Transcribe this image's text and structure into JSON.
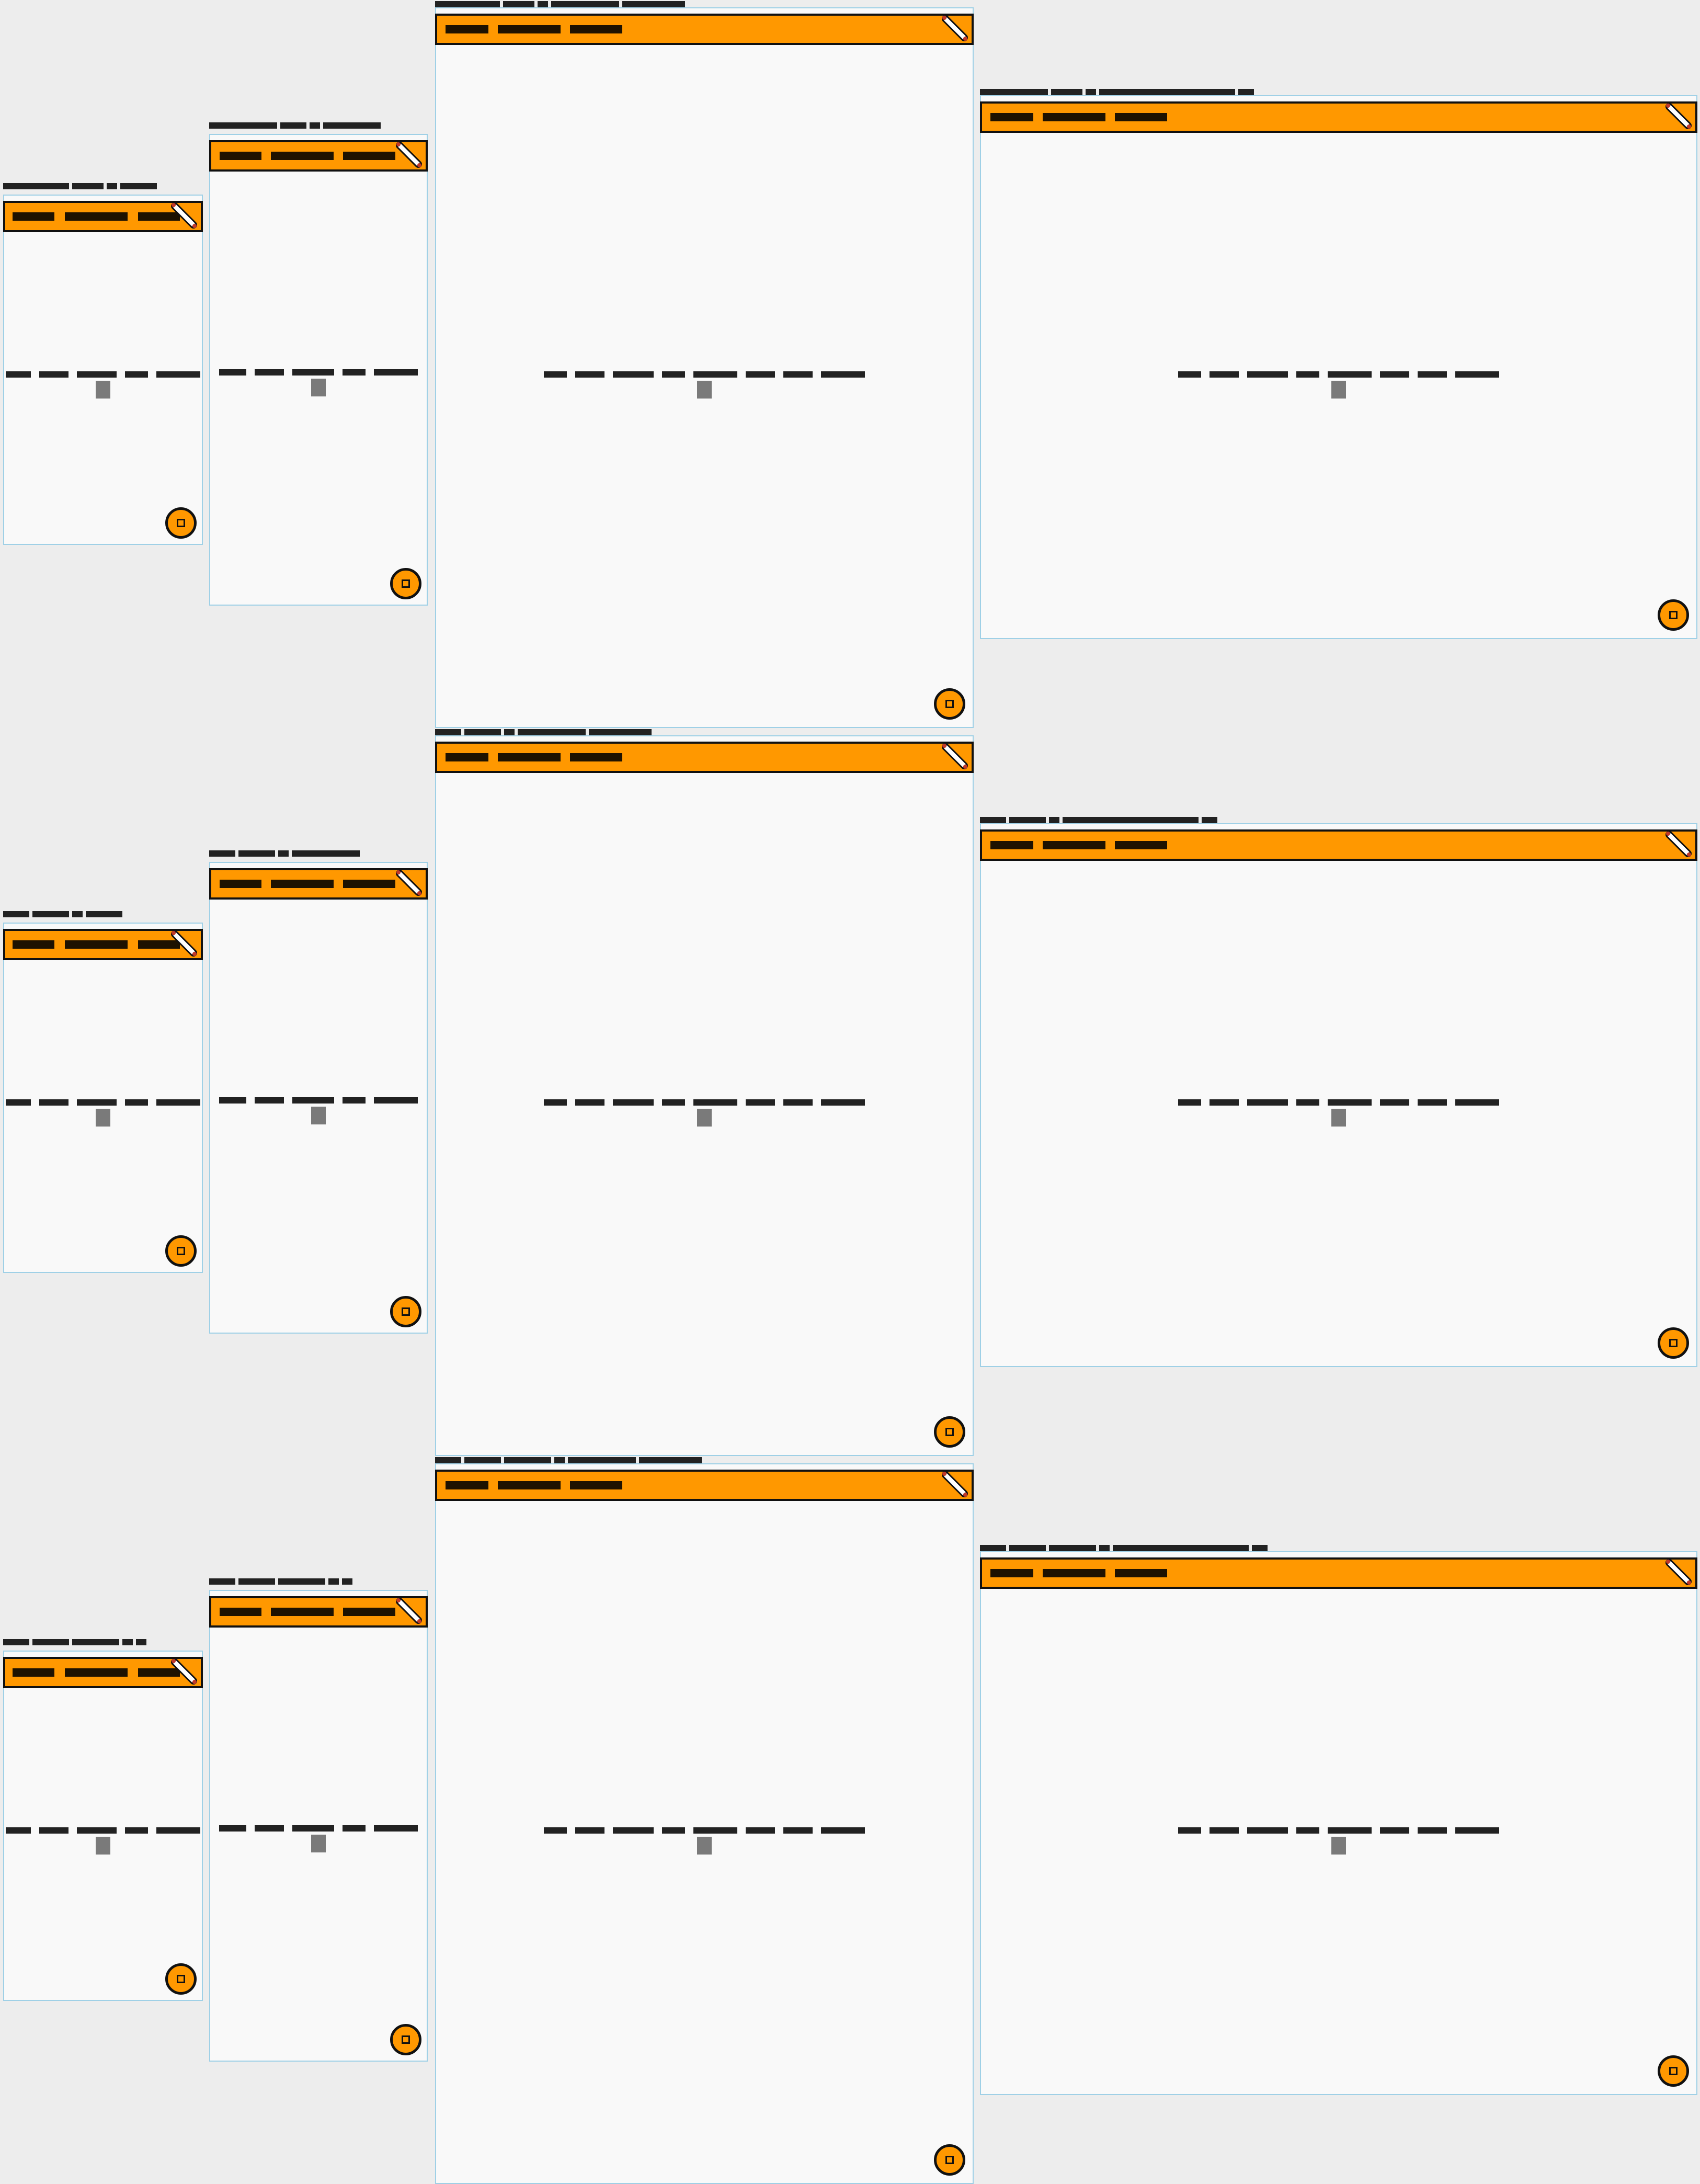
{
  "frames": [
    {
      "device": "phone-small"
    },
    {
      "device": "phone"
    },
    {
      "device": "tablet-portrait"
    },
    {
      "device": "tablet-landscape"
    },
    {
      "device": "phone-small"
    },
    {
      "device": "phone"
    },
    {
      "device": "tablet-portrait"
    },
    {
      "device": "tablet-landscape"
    },
    {
      "device": "phone-small"
    },
    {
      "device": "phone"
    },
    {
      "device": "tablet-portrait"
    },
    {
      "device": "tablet-landscape"
    }
  ],
  "icons": {
    "edit": "pencil-icon",
    "fab": "stop-square-icon"
  },
  "colors": {
    "accent": "#ff9800",
    "border": "#9fd0e6",
    "background": "#ededed",
    "window": "#f9f9f9"
  }
}
